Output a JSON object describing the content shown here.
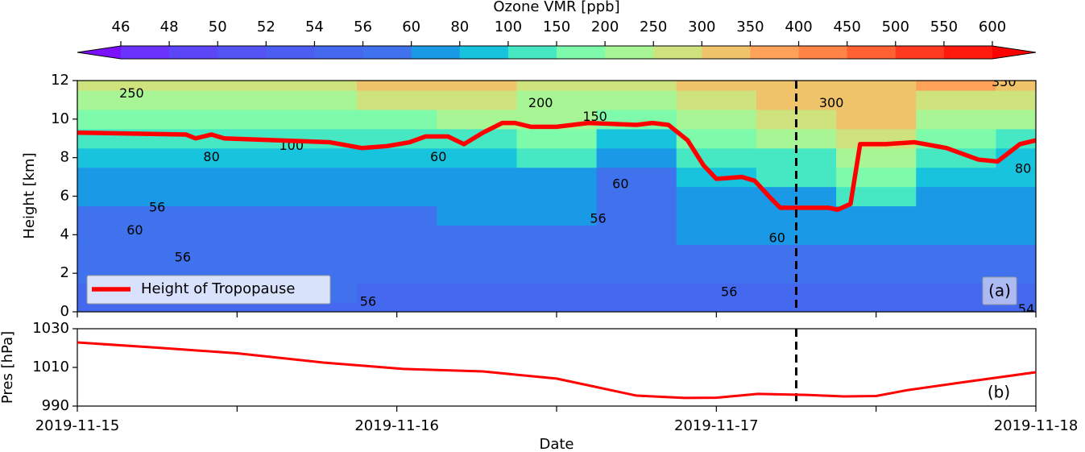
{
  "chart_data": [
    {
      "type": "contour",
      "colorbar_label": "Ozone VMR [ppb]",
      "levels": [
        46,
        48,
        50,
        52,
        54,
        56,
        60,
        80,
        100,
        150,
        200,
        250,
        300,
        350,
        400,
        450,
        500,
        550,
        600
      ],
      "colors": [
        "#7a10fd",
        "#6a32fb",
        "#5c46f8",
        "#5454f4",
        "#4c5ef2",
        "#4469ee",
        "#3f72ec",
        "#1a9ae6",
        "#17c3dd",
        "#46e8c4",
        "#7dfbab",
        "#a8f595",
        "#cee37e",
        "#eec36a",
        "#ffa259",
        "#ff8446",
        "#ff6133",
        "#ff3a1e",
        "#ff1a0d",
        "#ff0000"
      ],
      "ylabel": "Height [km]",
      "ylim": [
        0,
        12
      ],
      "yticks": [
        0,
        2,
        4,
        6,
        8,
        10,
        12
      ],
      "xlim": [
        0,
        3
      ],
      "x": [
        0,
        0.25,
        0.5,
        0.75,
        1,
        1.25,
        1.5,
        1.75,
        2,
        2.25,
        2.5,
        2.75,
        3
      ],
      "y": [
        0,
        1,
        2,
        3,
        4,
        5,
        6,
        7,
        8,
        9,
        10,
        11,
        12
      ],
      "z": [
        [
          55,
          55,
          55,
          55,
          55,
          55,
          55,
          55,
          55,
          55,
          55,
          55,
          54
        ],
        [
          55,
          55,
          56,
          56,
          55,
          55,
          55,
          55,
          55,
          55,
          55,
          55,
          55
        ],
        [
          56,
          57,
          57,
          57,
          56,
          56,
          56,
          56,
          56,
          56,
          56,
          56,
          56
        ],
        [
          57,
          57,
          57,
          57,
          58,
          58,
          57,
          57,
          58,
          58,
          58,
          58,
          58
        ],
        [
          58,
          58,
          58,
          58,
          58,
          59,
          58,
          57,
          60,
          60,
          62,
          62,
          62
        ],
        [
          58,
          58,
          59,
          59,
          59,
          60,
          60,
          58,
          62,
          62,
          70,
          64,
          64
        ],
        [
          62,
          62,
          62,
          62,
          62,
          62,
          62,
          59,
          66,
          70,
          100,
          75,
          70
        ],
        [
          70,
          70,
          70,
          70,
          68,
          60,
          70,
          58,
          80,
          100,
          150,
          90,
          80
        ],
        [
          85,
          85,
          85,
          85,
          85,
          90,
          100,
          60,
          100,
          130,
          220,
          110,
          90
        ],
        [
          120,
          120,
          110,
          110,
          110,
          130,
          150,
          95,
          150,
          200,
          280,
          150,
          130
        ],
        [
          180,
          180,
          170,
          170,
          180,
          200,
          200,
          160,
          210,
          260,
          320,
          200,
          200
        ],
        [
          240,
          240,
          230,
          220,
          260,
          280,
          240,
          220,
          260,
          300,
          330,
          280,
          280
        ],
        [
          270,
          280,
          280,
          260,
          320,
          340,
          280,
          270,
          300,
          320,
          340,
          360,
          340
        ]
      ],
      "series": [
        {
          "name": "Height of Tropopause",
          "color": "#ff0000",
          "x": [
            0,
            0.34,
            0.37,
            0.42,
            0.46,
            0.79,
            0.89,
            0.97,
            1.04,
            1.09,
            1.16,
            1.21,
            1.27,
            1.33,
            1.37,
            1.42,
            1.5,
            1.6,
            1.75,
            1.8,
            1.85,
            1.91,
            1.96,
            2.0,
            2.08,
            2.12,
            2.17,
            2.2,
            2.35,
            2.38,
            2.42,
            2.45,
            2.53,
            2.62,
            2.72,
            2.82,
            2.88,
            2.95,
            3.0
          ],
          "values": [
            9.3,
            9.2,
            9.0,
            9.2,
            9.0,
            8.8,
            8.5,
            8.6,
            8.8,
            9.1,
            9.1,
            8.7,
            9.3,
            9.8,
            9.8,
            9.6,
            9.6,
            9.8,
            9.7,
            9.8,
            9.7,
            8.9,
            7.6,
            6.9,
            7.0,
            6.8,
            5.9,
            5.4,
            5.4,
            5.3,
            5.6,
            8.7,
            8.7,
            8.8,
            8.5,
            7.9,
            7.8,
            8.7,
            8.9
          ]
        }
      ],
      "legend": "lower left",
      "annotation": "(a)",
      "vline_x": 2.25,
      "contour_labels": [
        {
          "value": 250,
          "x": 0.17,
          "y": 11.3
        },
        {
          "value": 200,
          "x": 1.45,
          "y": 10.8
        },
        {
          "value": 150,
          "x": 1.62,
          "y": 10.1
        },
        {
          "value": 100,
          "x": 0.67,
          "y": 8.6
        },
        {
          "value": 80,
          "x": 0.42,
          "y": 8.0
        },
        {
          "value": 60,
          "x": 1.13,
          "y": 8.0
        },
        {
          "value": 60,
          "x": 1.7,
          "y": 6.6
        },
        {
          "value": 56,
          "x": 1.63,
          "y": 4.8
        },
        {
          "value": 56,
          "x": 0.25,
          "y": 5.4
        },
        {
          "value": 60,
          "x": 0.18,
          "y": 4.2
        },
        {
          "value": 56,
          "x": 0.33,
          "y": 2.8
        },
        {
          "value": 56,
          "x": 0.91,
          "y": 0.5
        },
        {
          "value": 56,
          "x": 2.04,
          "y": 1.0
        },
        {
          "value": 60,
          "x": 2.19,
          "y": 3.8
        },
        {
          "value": 300,
          "x": 2.36,
          "y": 10.8
        },
        {
          "value": 350,
          "x": 2.9,
          "y": 11.9
        },
        {
          "value": 80,
          "x": 2.96,
          "y": 7.4
        },
        {
          "value": 54,
          "x": 2.97,
          "y": 0.1
        }
      ]
    },
    {
      "type": "line",
      "ylabel": "Pres [hPa]",
      "xlabel": "Date",
      "ylim": [
        990,
        1030
      ],
      "yticks": [
        990,
        1010,
        1030
      ],
      "xlim": [
        0,
        3
      ],
      "xticks": [
        {
          "value": 0,
          "label": "2019-11-15"
        },
        {
          "value": 1,
          "label": "2019-11-16"
        },
        {
          "value": 2,
          "label": "2019-11-17"
        },
        {
          "value": 3,
          "label": "2019-11-18"
        }
      ],
      "minor_xticks": [
        0.5,
        1.5,
        2.5
      ],
      "color": "#ff0000",
      "x": [
        0,
        0.25,
        0.5,
        0.77,
        1.02,
        1.27,
        1.5,
        1.62,
        1.75,
        1.9,
        2.0,
        2.13,
        2.28,
        2.4,
        2.5,
        2.6,
        2.78,
        3.0
      ],
      "values": [
        1022.9,
        1020.2,
        1017.3,
        1012.5,
        1009.2,
        1007.9,
        1004.2,
        1000.0,
        995.4,
        994.2,
        994.3,
        996.3,
        995.8,
        995.0,
        995.2,
        998.3,
        1002.5,
        1007.5
      ],
      "annotation": "(b)",
      "vline_x": 2.25
    }
  ]
}
